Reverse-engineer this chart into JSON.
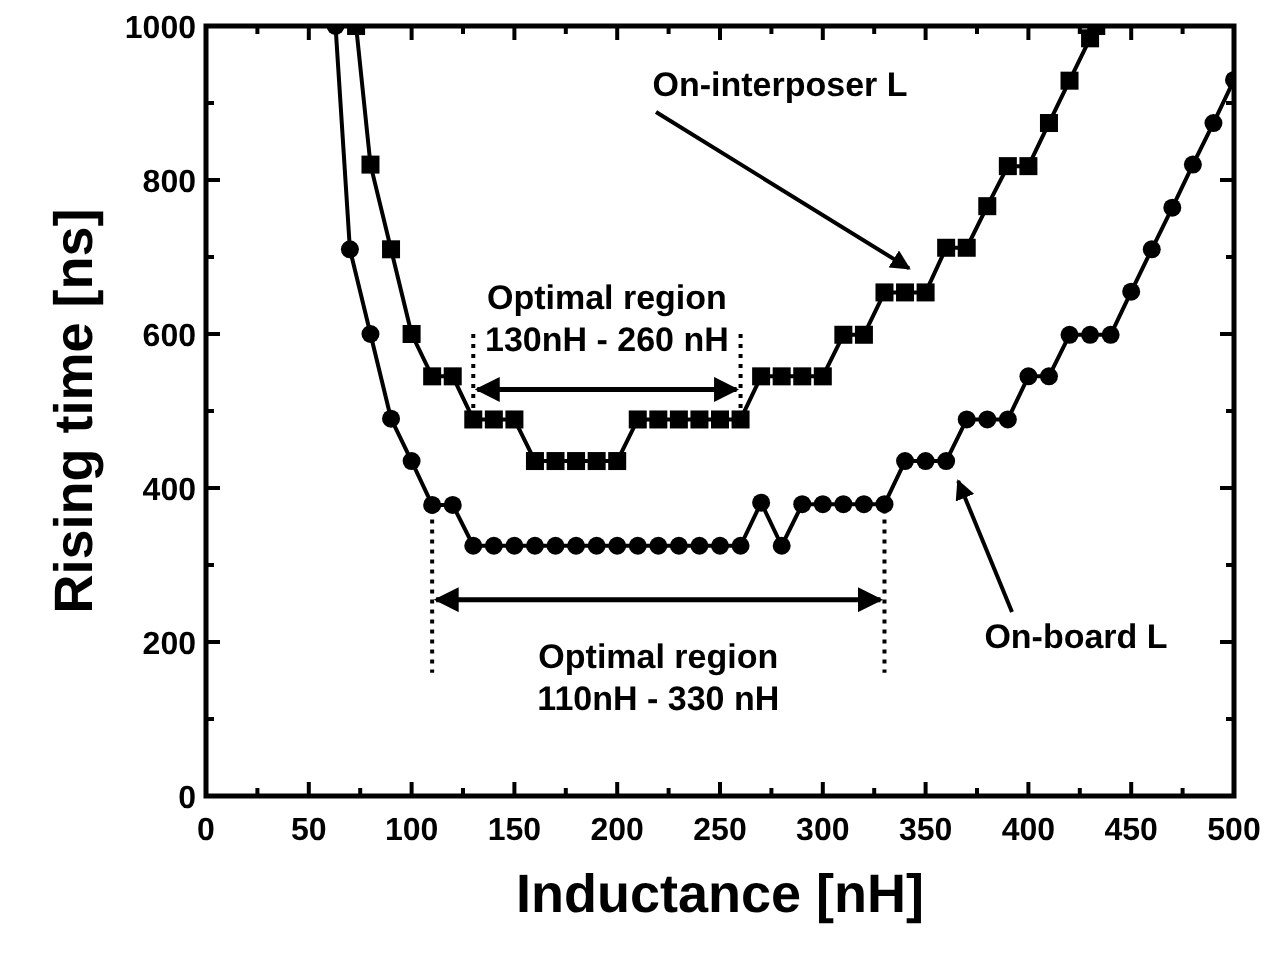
{
  "chart_data": {
    "type": "line",
    "xlabel": "Inductance [nH]",
    "ylabel": "Rising time [ns]",
    "xlim": [
      0,
      500
    ],
    "ylim": [
      0,
      1000
    ],
    "xticks": [
      0,
      {
        "value": 25,
        "label": null
      },
      50,
      {
        "value": 75,
        "label": null
      },
      100,
      {
        "value": 125,
        "label": null
      },
      150,
      {
        "value": 175,
        "label": null
      },
      200,
      {
        "value": 225,
        "label": null
      },
      250,
      {
        "value": 275,
        "label": null
      },
      300,
      {
        "value": 325,
        "label": null
      },
      350,
      {
        "value": 375,
        "label": null
      },
      400,
      {
        "value": 425,
        "label": null
      },
      450,
      {
        "value": 475,
        "label": null
      },
      500
    ],
    "yticks": [
      0,
      {
        "value": 100,
        "label": null
      },
      200,
      {
        "value": 300,
        "label": null
      },
      400,
      {
        "value": 500,
        "label": null
      },
      600,
      {
        "value": 700,
        "label": null
      },
      800,
      {
        "value": 900,
        "label": null
      },
      1000
    ],
    "grid": false,
    "line_style": "solid",
    "series": [
      {
        "name": "On-interposer L",
        "color": "#000000",
        "marker": "square",
        "x": [
          73,
          80,
          90,
          100,
          110,
          120,
          130,
          140,
          150,
          160,
          170,
          180,
          190,
          200,
          210,
          220,
          230,
          240,
          250,
          260,
          270,
          280,
          290,
          300,
          310,
          320,
          330,
          340,
          350,
          360,
          370,
          380,
          390,
          400,
          410,
          420,
          430,
          433
        ],
        "values": [
          1000,
          820,
          710,
          600,
          545,
          545,
          489,
          489,
          489,
          435,
          435,
          435,
          435,
          435,
          489,
          489,
          489,
          489,
          489,
          489,
          545,
          545,
          545,
          545,
          599,
          599,
          654,
          654,
          654,
          712,
          712,
          766,
          818,
          818,
          874,
          929,
          984,
          1000
        ]
      },
      {
        "name": "On-board L",
        "color": "#000000",
        "marker": "circle",
        "x": [
          63,
          70,
          80,
          90,
          100,
          110,
          120,
          130,
          140,
          150,
          160,
          170,
          180,
          190,
          200,
          210,
          220,
          230,
          240,
          250,
          260,
          270,
          280,
          290,
          300,
          310,
          320,
          330,
          340,
          350,
          360,
          370,
          380,
          390,
          400,
          410,
          420,
          430,
          440,
          450,
          460,
          470,
          480,
          490,
          500
        ],
        "values": [
          1000,
          710,
          600,
          490,
          435,
          378,
          378,
          325,
          325,
          325,
          325,
          325,
          325,
          325,
          325,
          325,
          325,
          325,
          325,
          325,
          325,
          381,
          325,
          379,
          379,
          379,
          379,
          379,
          435,
          435,
          435,
          489,
          489,
          489,
          545,
          545,
          599,
          599,
          599,
          655,
          710,
          764,
          820,
          874,
          930
        ]
      }
    ],
    "ref_lines": [
      {
        "axis": "x",
        "value": 130,
        "line_style": "dotted"
      },
      {
        "axis": "x",
        "value": 260,
        "line_style": "dotted"
      },
      {
        "axis": "x",
        "value": 110,
        "line_style": "dotted"
      },
      {
        "axis": "x",
        "value": 330,
        "line_style": "dotted"
      }
    ],
    "annotations": [
      "Optimal region\n130nH - 260 nH",
      "Optimal region\n110nH - 330 nH"
    ]
  }
}
